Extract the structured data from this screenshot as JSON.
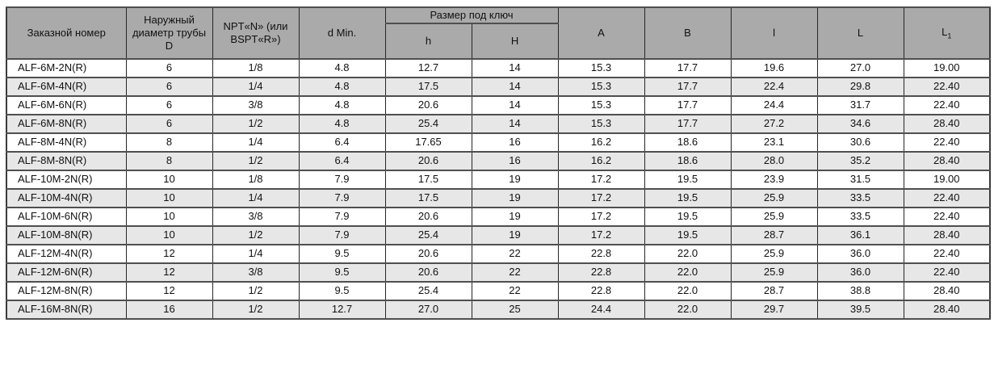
{
  "colors": {
    "header_bg": "#aaaaaa",
    "stripe_bg": "#e7e7e7",
    "row_bg": "#ffffff",
    "border_dark": "#3a3a3a",
    "border_row": "#4f4f4f",
    "text": "#111111"
  },
  "table": {
    "header": {
      "order_number": "Заказной номер",
      "outer_diameter": "Наружный диаметр трубы D",
      "thread": "NPT«N» (или BSPT«R»)",
      "d_min": "d Min.",
      "wrench_group": "Размер под ключ",
      "wrench_h": "h",
      "wrench_H": "H",
      "col_A": "A",
      "col_B": "B",
      "col_l": "l",
      "col_L": "L",
      "col_L1_main": "L",
      "col_L1_sub": "1"
    },
    "rows": [
      [
        "ALF-6M-2N(R)",
        "6",
        "1/8",
        "4.8",
        "12.7",
        "14",
        "15.3",
        "17.7",
        "19.6",
        "27.0",
        "19.00"
      ],
      [
        "ALF-6M-4N(R)",
        "6",
        "1/4",
        "4.8",
        "17.5",
        "14",
        "15.3",
        "17.7",
        "22.4",
        "29.8",
        "22.40"
      ],
      [
        "ALF-6M-6N(R)",
        "6",
        "3/8",
        "4.8",
        "20.6",
        "14",
        "15.3",
        "17.7",
        "24.4",
        "31.7",
        "22.40"
      ],
      [
        "ALF-6M-8N(R)",
        "6",
        "1/2",
        "4.8",
        "25.4",
        "14",
        "15.3",
        "17.7",
        "27.2",
        "34.6",
        "28.40"
      ],
      [
        "ALF-8M-4N(R)",
        "8",
        "1/4",
        "6.4",
        "17.65",
        "16",
        "16.2",
        "18.6",
        "23.1",
        "30.6",
        "22.40"
      ],
      [
        "ALF-8M-8N(R)",
        "8",
        "1/2",
        "6.4",
        "20.6",
        "16",
        "16.2",
        "18.6",
        "28.0",
        "35.2",
        "28.40"
      ],
      [
        "ALF-10M-2N(R)",
        "10",
        "1/8",
        "7.9",
        "17.5",
        "19",
        "17.2",
        "19.5",
        "23.9",
        "31.5",
        "19.00"
      ],
      [
        "ALF-10M-4N(R)",
        "10",
        "1/4",
        "7.9",
        "17.5",
        "19",
        "17.2",
        "19.5",
        "25.9",
        "33.5",
        "22.40"
      ],
      [
        "ALF-10M-6N(R)",
        "10",
        "3/8",
        "7.9",
        "20.6",
        "19",
        "17.2",
        "19.5",
        "25.9",
        "33.5",
        "22.40"
      ],
      [
        "ALF-10M-8N(R)",
        "10",
        "1/2",
        "7.9",
        "25.4",
        "19",
        "17.2",
        "19.5",
        "28.7",
        "36.1",
        "28.40"
      ],
      [
        "ALF-12M-4N(R)",
        "12",
        "1/4",
        "9.5",
        "20.6",
        "22",
        "22.8",
        "22.0",
        "25.9",
        "36.0",
        "22.40"
      ],
      [
        "ALF-12M-6N(R)",
        "12",
        "3/8",
        "9.5",
        "20.6",
        "22",
        "22.8",
        "22.0",
        "25.9",
        "36.0",
        "22.40"
      ],
      [
        "ALF-12M-8N(R)",
        "12",
        "1/2",
        "9.5",
        "25.4",
        "22",
        "22.8",
        "22.0",
        "28.7",
        "38.8",
        "28.40"
      ],
      [
        "ALF-16M-8N(R)",
        "16",
        "1/2",
        "12.7",
        "27.0",
        "25",
        "24.4",
        "22.0",
        "29.7",
        "39.5",
        "28.40"
      ]
    ]
  }
}
